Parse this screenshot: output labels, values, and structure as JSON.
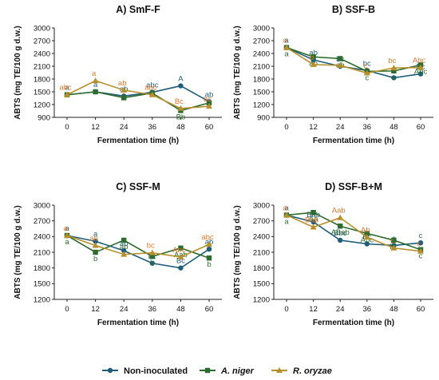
{
  "colors": {
    "series_0": "#1f5d7a",
    "series_1": "#2e6b2e",
    "series_2": "#b8902b",
    "label_2": "#e07a30"
  },
  "legend": [
    {
      "name": "Non-inoculated",
      "italic": false,
      "marker": "circle"
    },
    {
      "name": "A. niger",
      "italic": true,
      "marker": "square"
    },
    {
      "name": "R. oryzae",
      "italic": true,
      "marker": "triangle"
    }
  ],
  "chart_data": [
    {
      "type": "line",
      "title": "A) SmF-F",
      "xlabel": "Fermentation time (h)",
      "ylabel": "ABTS (mg TE/100 g d.w.)",
      "x": [
        0,
        12,
        24,
        36,
        48,
        60
      ],
      "ylim": [
        900,
        3000
      ],
      "yticks": [
        900,
        1200,
        1500,
        1800,
        2100,
        2400,
        2700,
        3000
      ],
      "series": [
        {
          "name": "Non-inoculated",
          "values": [
            1430,
            1500,
            1400,
            1490,
            1640,
            1270
          ],
          "labels": [
            "a",
            "a",
            "ab",
            "abc",
            "A",
            "ab"
          ]
        },
        {
          "name": "A. niger",
          "values": [
            1430,
            1500,
            1360,
            1470,
            1060,
            1240
          ],
          "labels": [
            "",
            "",
            "",
            "",
            "Bb",
            ""
          ]
        },
        {
          "name": "R. oryzae",
          "values": [
            1430,
            1760,
            1540,
            1430,
            1110,
            1160
          ],
          "labels": [
            "abc",
            "a",
            "ab",
            "abc",
            "Bc",
            "bc"
          ]
        }
      ]
    },
    {
      "type": "line",
      "title": "B) SSF-B",
      "xlabel": "Fermentation time (h)",
      "ylabel": "ABTS (mg TE/100 g d.w.)",
      "x": [
        0,
        12,
        24,
        36,
        48,
        60
      ],
      "ylim": [
        900,
        3000
      ],
      "yticks": [
        900,
        1200,
        1500,
        1800,
        2100,
        2400,
        2700,
        3000
      ],
      "series": [
        {
          "name": "Non-inoculated",
          "values": [
            2540,
            2250,
            2100,
            2000,
            1830,
            1920
          ],
          "labels": [
            "a",
            "ab",
            "bc",
            "bc",
            "c",
            "Bc"
          ]
        },
        {
          "name": "A. niger",
          "values": [
            2540,
            2320,
            2280,
            1980,
            1990,
            2130
          ],
          "labels": [
            "a",
            "ab",
            "ab",
            "c",
            "c",
            "Abc"
          ]
        },
        {
          "name": "R. oryzae",
          "values": [
            2540,
            2140,
            2120,
            1940,
            2060,
            2070
          ],
          "labels": [
            "a",
            "b",
            "",
            "c",
            "bc",
            "Abc"
          ]
        }
      ]
    },
    {
      "type": "line",
      "title": "C) SSF-M",
      "xlabel": "Fermentation time (h)",
      "ylabel": "ABTS (mg TE/100 g d.w.)",
      "x": [
        0,
        12,
        24,
        36,
        48,
        60
      ],
      "ylim": [
        1200,
        3000
      ],
      "yticks": [
        1200,
        1500,
        1800,
        2100,
        2400,
        2700,
        3000
      ],
      "series": [
        {
          "name": "Non-inoculated",
          "values": [
            2420,
            2310,
            2130,
            1890,
            1800,
            2160
          ],
          "labels": [
            "a",
            "a",
            "ab",
            "bc",
            "Bc",
            "ab"
          ]
        },
        {
          "name": "A. niger",
          "values": [
            2420,
            2100,
            2330,
            2020,
            2180,
            1990
          ],
          "labels": [
            "a",
            "b",
            "ab",
            "b",
            "Aab",
            "b"
          ]
        },
        {
          "name": "R. oryzae",
          "values": [
            2420,
            2230,
            2060,
            2090,
            2010,
            2250
          ],
          "labels": [
            "a",
            "ab",
            "",
            "bc",
            "Abc",
            "abc"
          ]
        }
      ]
    },
    {
      "type": "line",
      "title": "D) SSF-B+M",
      "xlabel": "Fermentation time (h)",
      "ylabel": "ABTS (mg TE/100 g d.w.)",
      "x": [
        0,
        12,
        24,
        36,
        48,
        60
      ],
      "ylim": [
        1200,
        3000
      ],
      "yticks": [
        1200,
        1500,
        1800,
        2100,
        2400,
        2700,
        3000
      ],
      "series": [
        {
          "name": "Non-inoculated",
          "values": [
            2810,
            2680,
            2330,
            2260,
            2230,
            2280
          ],
          "labels": [
            "a",
            "Bab",
            "Bbc",
            "Bc",
            "c",
            "c"
          ]
        },
        {
          "name": "A. niger",
          "values": [
            2810,
            2860,
            2600,
            2460,
            2330,
            2150
          ],
          "labels": [
            "a",
            "Aa",
            "ABab",
            "Abc",
            "bc",
            "c"
          ]
        },
        {
          "name": "R. oryzae",
          "values": [
            2810,
            2580,
            2760,
            2390,
            2180,
            2120
          ],
          "labels": [
            "a",
            "Bab",
            "Aab",
            "Ab",
            "c",
            "c"
          ]
        }
      ]
    }
  ]
}
